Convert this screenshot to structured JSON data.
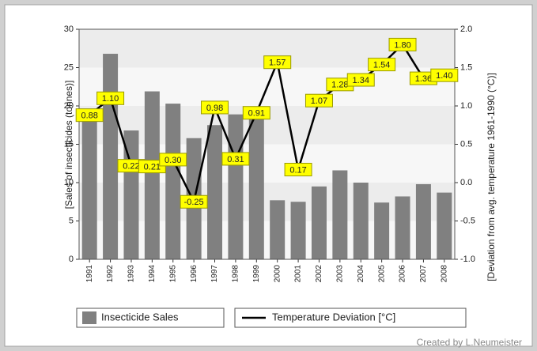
{
  "chart_data": {
    "type": "bar",
    "categories": [
      "1991",
      "1992",
      "1993",
      "1994",
      "1995",
      "1996",
      "1997",
      "1998",
      "1999",
      "2000",
      "2001",
      "2002",
      "2003",
      "2004",
      "2005",
      "2006",
      "2007",
      "2008"
    ],
    "series": [
      {
        "name": "Insecticide Sales",
        "type": "bar",
        "color": "#808080",
        "values": [
          18.5,
          26.8,
          16.8,
          21.9,
          20.3,
          15.8,
          17.5,
          18.9,
          18.6,
          7.7,
          7.5,
          9.5,
          11.6,
          10.0,
          7.4,
          8.2,
          9.8,
          8.7
        ]
      },
      {
        "name": "Temperature Deviation [°C]",
        "type": "line",
        "axis": "y2",
        "color": "#000000",
        "values": [
          0.88,
          1.1,
          0.22,
          0.21,
          0.3,
          -0.25,
          0.98,
          0.31,
          0.91,
          1.57,
          0.17,
          1.07,
          1.28,
          1.34,
          1.54,
          1.8,
          1.36,
          1.4
        ],
        "value_labels": [
          "0.88",
          "1.10",
          "0.22",
          "0.21",
          "0.30",
          "-0.25",
          "0.98",
          "0.31",
          "0.91",
          "1.57",
          "0.17",
          "1.07",
          "1.28",
          "1.34",
          "1.54",
          "1.80",
          "1.36",
          "1.40"
        ]
      }
    ],
    "ylabel": "[Sales of insecticides (tonnes)]",
    "y2label": "[Deviation from avg. temperature 1961-1990 (°C)]",
    "ylim": [
      0,
      30
    ],
    "yticks": [
      0,
      5,
      10,
      15,
      20,
      25,
      30
    ],
    "y2lim": [
      -1,
      2
    ],
    "y2ticks": [
      {
        "value": -1,
        "label": "-1.0"
      },
      {
        "value": -0.5,
        "label": "-0.5"
      },
      {
        "value": 0,
        "label": "0.0"
      },
      {
        "value": 0.5,
        "label": "0.5"
      },
      {
        "value": 1,
        "label": "1.0"
      },
      {
        "value": 1.5,
        "label": "1.5"
      },
      {
        "value": 2,
        "label": "2.0"
      }
    ],
    "label_color": "#ffff00",
    "credit": "Created by L.Neumeister"
  }
}
